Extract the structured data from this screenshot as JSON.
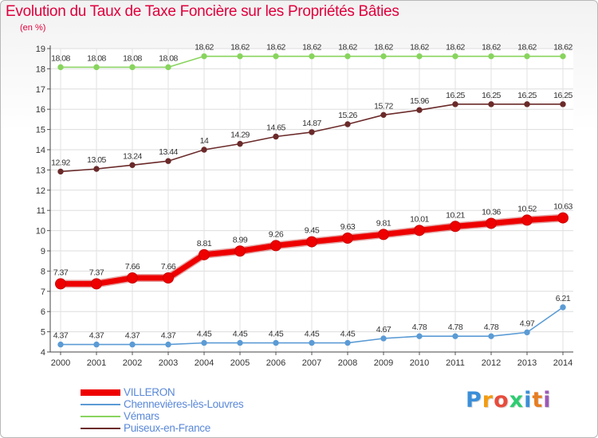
{
  "chart_data": {
    "type": "line",
    "title": "Evolution du Taux de Taxe Foncière sur les Propriétés Bâties",
    "ylabel": "(en %)",
    "xlabel": "",
    "ylim": [
      4,
      19
    ],
    "yticks": [
      4,
      5,
      6,
      7,
      8,
      9,
      10,
      11,
      12,
      13,
      14,
      15,
      16,
      17,
      18,
      19
    ],
    "x": [
      "2000",
      "2001",
      "2002",
      "2003",
      "2004",
      "2005",
      "2006",
      "2007",
      "2008",
      "2009",
      "2010",
      "2011",
      "2012",
      "2013",
      "2014"
    ],
    "grid": true,
    "legend_position": "bottom-left",
    "series": [
      {
        "name": "VILLERON",
        "color": "#ee0000",
        "values": [
          7.37,
          7.37,
          7.66,
          7.66,
          8.81,
          8.99,
          9.26,
          9.45,
          9.63,
          9.81,
          10.01,
          10.21,
          10.36,
          10.52,
          10.63
        ],
        "labels": [
          "7.37",
          "7.37",
          "7.66",
          "7.66",
          "8.81",
          "8.99",
          "9.26",
          "9.45",
          "9.63",
          "9.81",
          "10.01",
          "10.21",
          "10.36",
          "10.52",
          "10.63"
        ]
      },
      {
        "name": "Chennevières-lès-Louvres",
        "color": "#5b9bd5",
        "values": [
          4.37,
          4.37,
          4.37,
          4.37,
          4.45,
          4.45,
          4.45,
          4.45,
          4.45,
          4.67,
          4.78,
          4.78,
          4.78,
          4.97,
          6.21
        ],
        "labels": [
          "4.37",
          "4.37",
          "4.37",
          "4.37",
          "4.45",
          "4.45",
          "4.45",
          "4.45",
          "4.45",
          "4.67",
          "4.78",
          "4.78",
          "4.78",
          "4.97",
          "6.21"
        ]
      },
      {
        "name": "Vémars",
        "color": "#88d45e",
        "values": [
          18.08,
          18.08,
          18.08,
          18.08,
          18.62,
          18.62,
          18.62,
          18.62,
          18.62,
          18.62,
          18.62,
          18.62,
          18.62,
          18.62,
          18.62
        ],
        "labels": [
          "18.08",
          "18.08",
          "18.08",
          "18.08",
          "18.62",
          "18.62",
          "18.62",
          "18.62",
          "18.62",
          "18.62",
          "18.62",
          "18.62",
          "18.62",
          "18.62",
          "18.62"
        ]
      },
      {
        "name": "Puiseux-en-France",
        "color": "#6b2a2a",
        "values": [
          12.92,
          13.05,
          13.24,
          13.44,
          14,
          14.29,
          14.65,
          14.87,
          15.26,
          15.72,
          15.96,
          16.25,
          16.25,
          16.25,
          16.25
        ],
        "labels": [
          "12.92",
          "13.05",
          "13.24",
          "13.44",
          "14",
          "14.29",
          "14.65",
          "14.87",
          "15.26",
          "15.72",
          "15.96",
          "16.25",
          "16.25",
          "16.25",
          "16.25"
        ]
      }
    ]
  },
  "brand": {
    "letters": [
      "P",
      "r",
      "o",
      "x",
      "i",
      "t",
      "i"
    ],
    "colors": [
      "#3b8fd8",
      "#f39c12",
      "#e74c3c",
      "#2ecc71",
      "#3b8fd8",
      "#e67e22",
      "#9b59b6"
    ]
  }
}
